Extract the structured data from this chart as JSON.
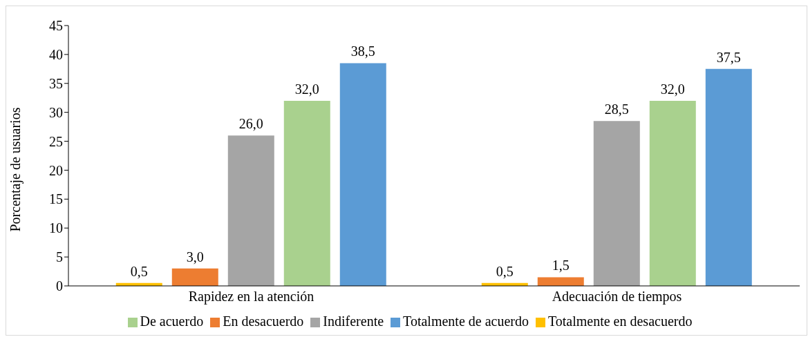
{
  "chart_data": {
    "type": "bar",
    "ylabel": "Porcentaje de usuarios",
    "categories": [
      "Rapidez en la atención",
      "Adecuación de tiempos"
    ],
    "series": [
      {
        "name": "Totalmente en desacuerdo",
        "color": "#ffc000",
        "values": [
          0.5,
          0.5
        ],
        "value_labels": [
          "0,5",
          "0,5"
        ]
      },
      {
        "name": "En desacuerdo",
        "color": "#ed7d31",
        "values": [
          3.0,
          1.5
        ],
        "value_labels": [
          "3,0",
          "1,5"
        ]
      },
      {
        "name": "Indiferente",
        "color": "#a5a5a5",
        "values": [
          26.0,
          28.5
        ],
        "value_labels": [
          "26,0",
          "28,5"
        ]
      },
      {
        "name": "De acuerdo",
        "color": "#a9d18e",
        "values": [
          32.0,
          32.0
        ],
        "value_labels": [
          "32,0",
          "32,0"
        ]
      },
      {
        "name": "Totalmente de acuerdo",
        "color": "#5b9bd5",
        "values": [
          38.5,
          37.5
        ],
        "value_labels": [
          "38,5",
          "37,5"
        ]
      }
    ],
    "ylim": [
      0,
      45
    ],
    "yticks": [
      0,
      5,
      10,
      15,
      20,
      25,
      30,
      35,
      40,
      45
    ],
    "grid": false,
    "legend": "bottom"
  }
}
